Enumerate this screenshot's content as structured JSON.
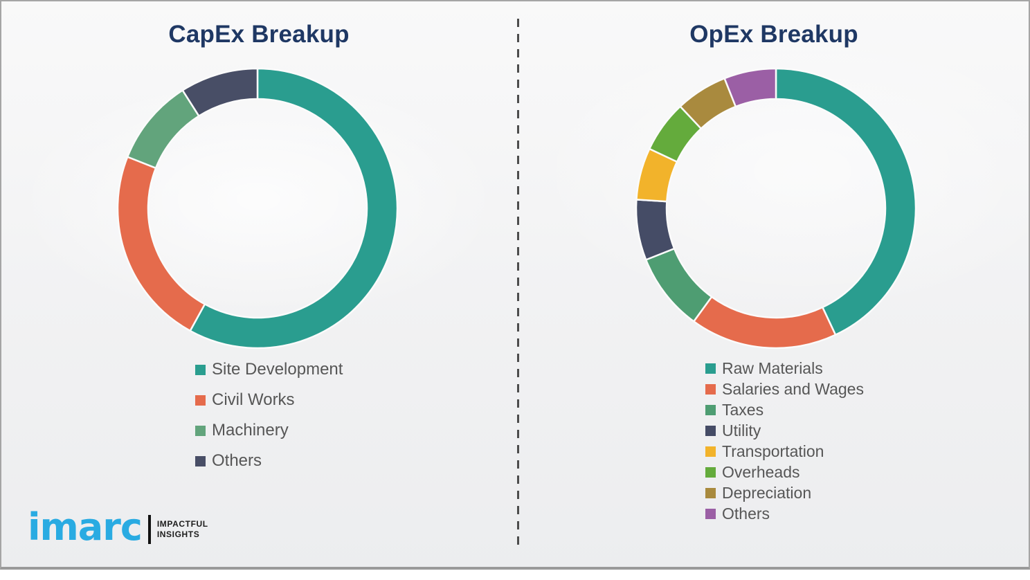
{
  "divider": {
    "type": "vertical-dashed-line",
    "color": "#4c4c4c"
  },
  "title_color": "#1f3864",
  "chart_data": [
    {
      "type": "pie",
      "subtype": "donut",
      "title": "CapEx Breakup",
      "labels": [
        "Site Development",
        "Civil Works",
        "Machinery",
        "Others"
      ],
      "values": [
        58,
        23,
        10,
        9
      ],
      "colors": [
        "#2a9d8f",
        "#e56b4c",
        "#62a47c",
        "#484e66"
      ],
      "start_angle_deg": 0,
      "direction": "clockwise",
      "legend_position": "below-chart-left",
      "grid": false
    },
    {
      "type": "pie",
      "subtype": "donut",
      "title": "OpEx Breakup",
      "labels": [
        "Raw Materials",
        "Salaries and Wages",
        "Taxes",
        "Utility",
        "Transportation",
        "Overheads",
        "Depreciation",
        "Others"
      ],
      "values": [
        43,
        17,
        9,
        7,
        6,
        6,
        6,
        6
      ],
      "colors": [
        "#2a9d8f",
        "#e56b4c",
        "#4e9d72",
        "#454c66",
        "#f2b32b",
        "#64ab3c",
        "#a98a3e",
        "#9b5fa5"
      ],
      "start_angle_deg": 0,
      "direction": "clockwise",
      "legend_position": "below-chart-left",
      "grid": false
    }
  ],
  "logo": {
    "brand": "imarc",
    "brand_color": "#29abe2",
    "tagline_line1": "IMPACTFUL",
    "tagline_line2": "INSIGHTS"
  }
}
